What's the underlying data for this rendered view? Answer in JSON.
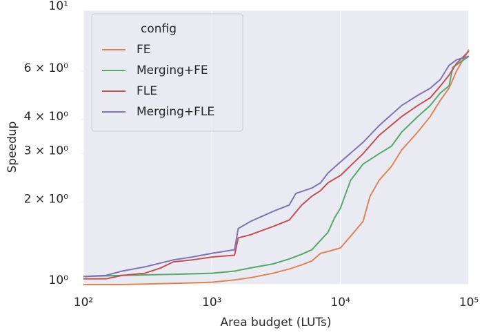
{
  "chart_data": {
    "type": "line",
    "xlabel": "Area budget (LUTs)",
    "ylabel": "Speedup",
    "xscale": "log",
    "yscale": "log",
    "xlim": [
      100,
      100000
    ],
    "ylim": [
      1,
      10
    ],
    "xticks": [
      {
        "value": 100,
        "label": "10²"
      },
      {
        "value": 1000,
        "label": "10³"
      },
      {
        "value": 10000,
        "label": "10⁴"
      },
      {
        "value": 100000,
        "label": "10⁵"
      }
    ],
    "yticks": [
      {
        "value": 1,
        "label": "10⁰"
      },
      {
        "value": 10,
        "label": "10¹"
      }
    ],
    "yminorticks": [
      {
        "value": 2,
        "label": "2 × 10⁰"
      },
      {
        "value": 3,
        "label": "3 × 10⁰"
      },
      {
        "value": 4,
        "label": "4 × 10⁰"
      },
      {
        "value": 6,
        "label": "6 × 10⁰"
      }
    ],
    "grid": true,
    "legend": {
      "title": "config",
      "loc": "upper left"
    },
    "series": [
      {
        "name": "FE",
        "color": "#dd8452",
        "x": [
          100,
          200,
          500,
          1000,
          1500,
          2000,
          3000,
          4000,
          5000,
          6000,
          7000,
          8000,
          10000,
          12000,
          15000,
          17000,
          20000,
          25000,
          30000,
          40000,
          50000,
          60000,
          70000,
          80000,
          100000
        ],
        "values": [
          1.0,
          1.0,
          1.01,
          1.02,
          1.04,
          1.06,
          1.1,
          1.14,
          1.18,
          1.22,
          1.3,
          1.32,
          1.36,
          1.5,
          1.7,
          2.1,
          2.4,
          2.7,
          3.1,
          3.6,
          4.1,
          4.7,
          5.2,
          6.0,
          7.2
        ]
      },
      {
        "name": "Merging+FE",
        "color": "#55a868",
        "x": [
          100,
          200,
          500,
          1000,
          1500,
          2000,
          3000,
          4000,
          5000,
          6000,
          7000,
          8000,
          9000,
          10000,
          12000,
          15000,
          20000,
          25000,
          30000,
          40000,
          50000,
          60000,
          70000,
          75000,
          100000
        ],
        "values": [
          1.07,
          1.08,
          1.09,
          1.1,
          1.12,
          1.15,
          1.19,
          1.24,
          1.29,
          1.34,
          1.45,
          1.55,
          1.75,
          1.9,
          2.4,
          2.75,
          3.0,
          3.2,
          3.6,
          4.1,
          4.5,
          5.0,
          5.3,
          6.2,
          6.8
        ]
      },
      {
        "name": "FLE",
        "color": "#c44e52",
        "x": [
          100,
          150,
          200,
          300,
          400,
          500,
          700,
          1000,
          1500,
          1600,
          2000,
          3000,
          4000,
          5000,
          6000,
          7000,
          8000,
          10000,
          15000,
          20000,
          30000,
          40000,
          50000,
          60000,
          70000,
          80000,
          100000
        ],
        "values": [
          1.05,
          1.05,
          1.08,
          1.1,
          1.15,
          1.21,
          1.23,
          1.26,
          1.28,
          1.48,
          1.52,
          1.63,
          1.72,
          1.95,
          2.1,
          2.2,
          2.35,
          2.5,
          3.0,
          3.5,
          4.1,
          4.5,
          4.8,
          5.3,
          5.8,
          6.4,
          7.1
        ]
      },
      {
        "name": "Merging+FLE",
        "color": "#8172b3",
        "x": [
          100,
          150,
          200,
          300,
          500,
          700,
          1000,
          1500,
          1600,
          2000,
          3000,
          4000,
          4500,
          6000,
          7000,
          8000,
          10000,
          15000,
          20000,
          30000,
          40000,
          50000,
          60000,
          70000,
          80000,
          100000
        ],
        "values": [
          1.07,
          1.08,
          1.12,
          1.16,
          1.23,
          1.26,
          1.3,
          1.34,
          1.6,
          1.7,
          1.85,
          1.95,
          2.15,
          2.25,
          2.35,
          2.55,
          2.8,
          3.3,
          3.8,
          4.5,
          4.9,
          5.2,
          5.6,
          6.3,
          6.6,
          6.8
        ]
      }
    ]
  }
}
